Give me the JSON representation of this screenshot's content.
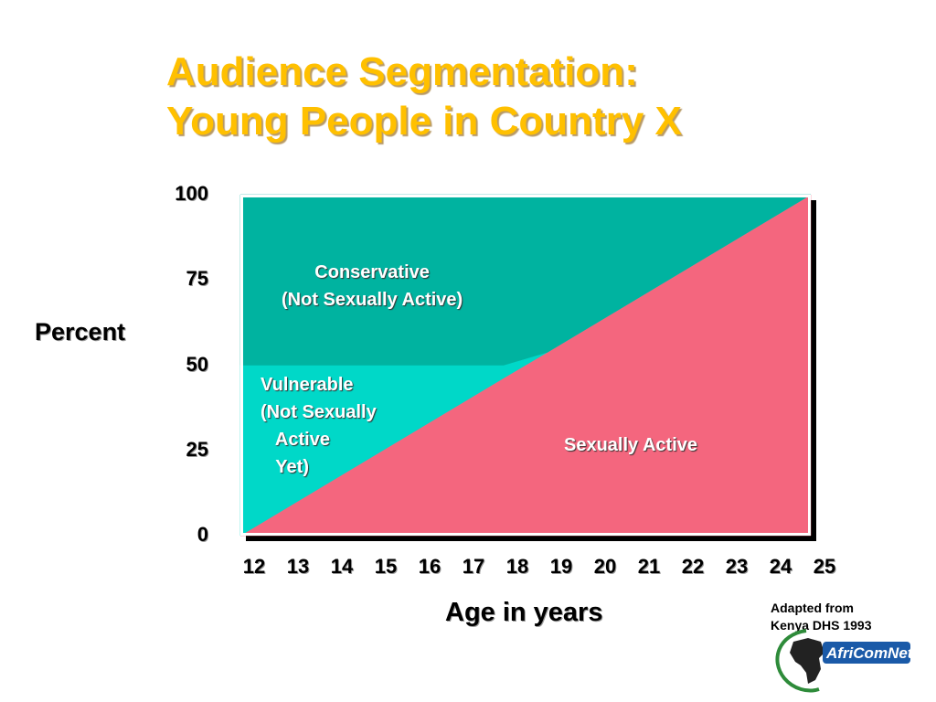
{
  "title": {
    "line1": "Audience Segmentation:",
    "line2": "Young People in Country X"
  },
  "regions": {
    "conservative": "Conservative\n(Not Sexually Active)",
    "vulnerable": "Vulnerable\n(Not Sexually\n   Active\n   Yet)",
    "sexually_active": "Sexually Active"
  },
  "credit": {
    "line1": "Adapted from",
    "line2": "Kenya DHS 1993"
  },
  "logo": {
    "text": "AfriComNet"
  },
  "colors": {
    "title": "#ffc000",
    "conservative": "#00b3a0",
    "vulnerable": "#00d8c8",
    "sexually_active": "#f4667e"
  },
  "chart_data": {
    "type": "area",
    "xlabel": "Age in years",
    "ylabel": "Percent",
    "x": [
      12,
      13,
      14,
      15,
      16,
      17,
      18,
      19,
      20,
      21,
      22,
      23,
      24,
      25
    ],
    "xlim": [
      12,
      25
    ],
    "ylim": [
      0,
      100
    ],
    "yticks": [
      0,
      25,
      50,
      75,
      100
    ],
    "series": [
      {
        "name": "Sexually Active",
        "values": [
          0,
          7.7,
          15.4,
          23.1,
          30.8,
          38.5,
          46.2,
          53.8,
          61.5,
          69.2,
          76.9,
          84.6,
          92.3,
          100
        ]
      },
      {
        "name": "Vulnerable (Not Sexually Active Yet)",
        "values": [
          50,
          42.3,
          34.6,
          26.9,
          19.2,
          11.5,
          3.8,
          0,
          0,
          0,
          0,
          0,
          0,
          0
        ]
      },
      {
        "name": "Conservative (Not Sexually Active)",
        "values": [
          50,
          50,
          50,
          50,
          50,
          50,
          50,
          46.2,
          38.5,
          30.8,
          23.1,
          15.4,
          7.7,
          0
        ]
      }
    ]
  }
}
